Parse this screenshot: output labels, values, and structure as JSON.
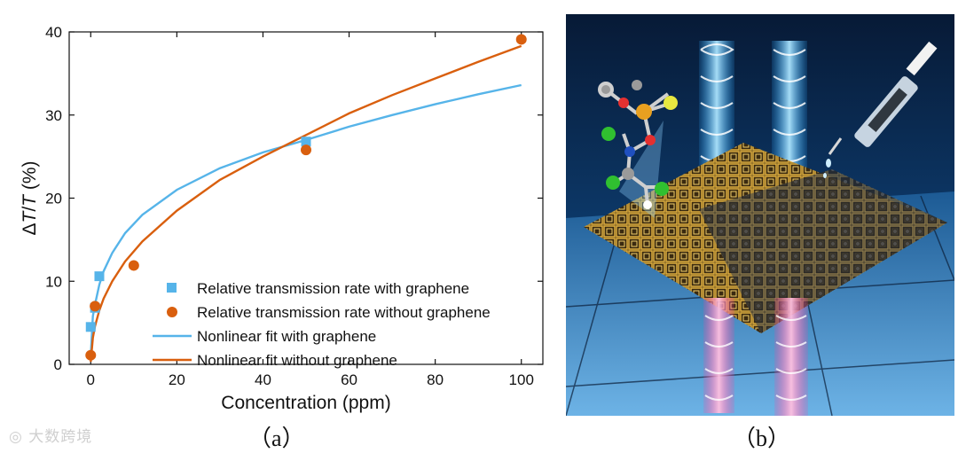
{
  "chart_data": {
    "type": "scatter",
    "xlabel": "Concentration (ppm)",
    "ylabel_parts": [
      "Δ",
      "T",
      "/",
      "T",
      " (%)"
    ],
    "xlim": [
      -5,
      105
    ],
    "ylim": [
      0,
      40
    ],
    "xticks": [
      0,
      20,
      40,
      60,
      80,
      100
    ],
    "yticks": [
      0,
      10,
      20,
      30,
      40
    ],
    "legend_position": "lower-right",
    "series": [
      {
        "name": "Relative transmission rate with graphene",
        "kind": "scatter",
        "marker": "square",
        "color": "#56B4E9",
        "x": [
          0,
          1,
          2,
          50
        ],
        "y": [
          4.5,
          6.8,
          10.6,
          26.8
        ]
      },
      {
        "name": "Relative transmission rate without graphene",
        "kind": "scatter",
        "marker": "circle",
        "color": "#D95F0E",
        "x": [
          0,
          1,
          10,
          50,
          100
        ],
        "y": [
          1.1,
          7.0,
          11.9,
          25.8,
          39.1
        ]
      },
      {
        "name": "Nonlinear fit with graphene",
        "kind": "line",
        "color": "#56B4E9",
        "x": [
          0,
          0.5,
          1,
          2,
          3,
          5,
          8,
          12,
          20,
          30,
          40,
          50,
          60,
          70,
          80,
          90,
          100
        ],
        "y": [
          1.0,
          5.8,
          7.2,
          9.6,
          11.2,
          13.4,
          15.8,
          18.0,
          21.0,
          23.6,
          25.5,
          27.0,
          28.6,
          30.0,
          31.3,
          32.5,
          33.6
        ]
      },
      {
        "name": "Nonlinear fit without graphene",
        "kind": "line",
        "color": "#D95F0E",
        "x": [
          0,
          0.5,
          1,
          2,
          3,
          5,
          8,
          12,
          20,
          30,
          40,
          50,
          60,
          70,
          80,
          90,
          100
        ],
        "y": [
          0.3,
          3.2,
          4.6,
          6.5,
          7.9,
          10.0,
          12.4,
          14.8,
          18.5,
          22.2,
          25.0,
          27.6,
          30.2,
          32.4,
          34.4,
          36.4,
          38.3
        ]
      }
    ]
  },
  "labels": {
    "panel_a": "（a）",
    "panel_b": "（b）"
  },
  "watermark": "大数跨境"
}
